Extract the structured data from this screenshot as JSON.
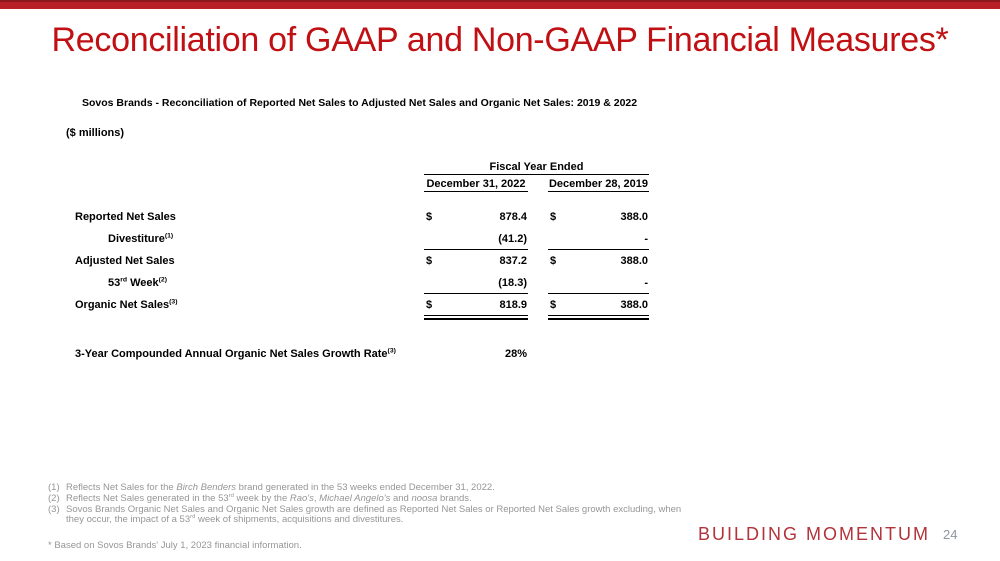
{
  "colors": {
    "bar_red": "#b81f26",
    "bar_red_dark": "#8a181c",
    "title_red": "#c01013",
    "tagline_red": "#b2333a",
    "footnote_gray": "#969696",
    "page_gray": "#8d969e"
  },
  "slide": {
    "title": "Reconciliation of GAAP and Non-GAAP Financial Measures*",
    "tagline": "BUILDING MOMENTUM",
    "page_number": "24",
    "footnote_star": "* Based on Sovos Brands' July 1, 2023 financial information."
  },
  "table": {
    "title": "Sovos Brands - Reconciliation of Reported Net Sales to Adjusted Net Sales and Organic Net Sales: 2019 & 2022",
    "units": "($ millions)",
    "header_group": "Fiscal Year Ended",
    "columns": [
      "December 31, 2022",
      "December 28, 2019"
    ],
    "rows": [
      {
        "label": [
          {
            "t": "Reported Net Sales"
          }
        ],
        "d1": "$",
        "v1": "878.4",
        "d2": "$",
        "v2": "388.0"
      },
      {
        "label": [
          {
            "t": "Divestiture"
          },
          {
            "t": "(1)",
            "s": "sup"
          }
        ],
        "d1": "",
        "v1": "(41.2)",
        "d2": "",
        "v2": "-"
      },
      {
        "label": [
          {
            "t": "Adjusted Net Sales"
          }
        ],
        "d1": "$",
        "v1": "837.2",
        "d2": "$",
        "v2": "388.0"
      },
      {
        "label": [
          {
            "t": "53"
          },
          {
            "t": "rd",
            "s": "sup"
          },
          {
            "t": " Week"
          },
          {
            "t": "(2)",
            "s": "sup"
          }
        ],
        "d1": "",
        "v1": "(18.3)",
        "d2": "",
        "v2": "-"
      },
      {
        "label": [
          {
            "t": "Organic Net Sales"
          },
          {
            "t": "(3)",
            "s": "sup"
          }
        ],
        "d1": "$",
        "v1": "818.9",
        "d2": "$",
        "v2": "388.0"
      }
    ]
  },
  "growth": {
    "label": [
      {
        "t": "3-Year Compounded Annual Organic Net Sales Growth Rate"
      },
      {
        "t": "(3)",
        "s": "sup"
      }
    ],
    "value": "28%"
  },
  "footnotes": [
    {
      "num": "(1)",
      "segments": [
        {
          "t": "Reflects Net Sales for the "
        },
        {
          "t": "Birch Benders",
          "s": "i"
        },
        {
          "t": " brand generated in the 53 weeks ended December 31, 2022."
        }
      ]
    },
    {
      "num": "(2)",
      "segments": [
        {
          "t": "Reflects Net Sales generated in the 53"
        },
        {
          "t": "rd",
          "s": "sup"
        },
        {
          "t": " week by the "
        },
        {
          "t": "Rao's",
          "s": "i"
        },
        {
          "t": ", "
        },
        {
          "t": "Michael Angelo's",
          "s": "i"
        },
        {
          "t": " and "
        },
        {
          "t": "noosa",
          "s": "i"
        },
        {
          "t": " brands."
        }
      ]
    },
    {
      "num": "(3)",
      "segments": [
        {
          "t": "Sovos Brands Organic Net Sales and Organic Net Sales growth are defined as Reported Net Sales or Reported Net Sales growth excluding, when they occur, the impact of a 53"
        },
        {
          "t": "rd",
          "s": "sup"
        },
        {
          "t": " week of shipments, acquisitions and divestitures."
        }
      ]
    }
  ]
}
